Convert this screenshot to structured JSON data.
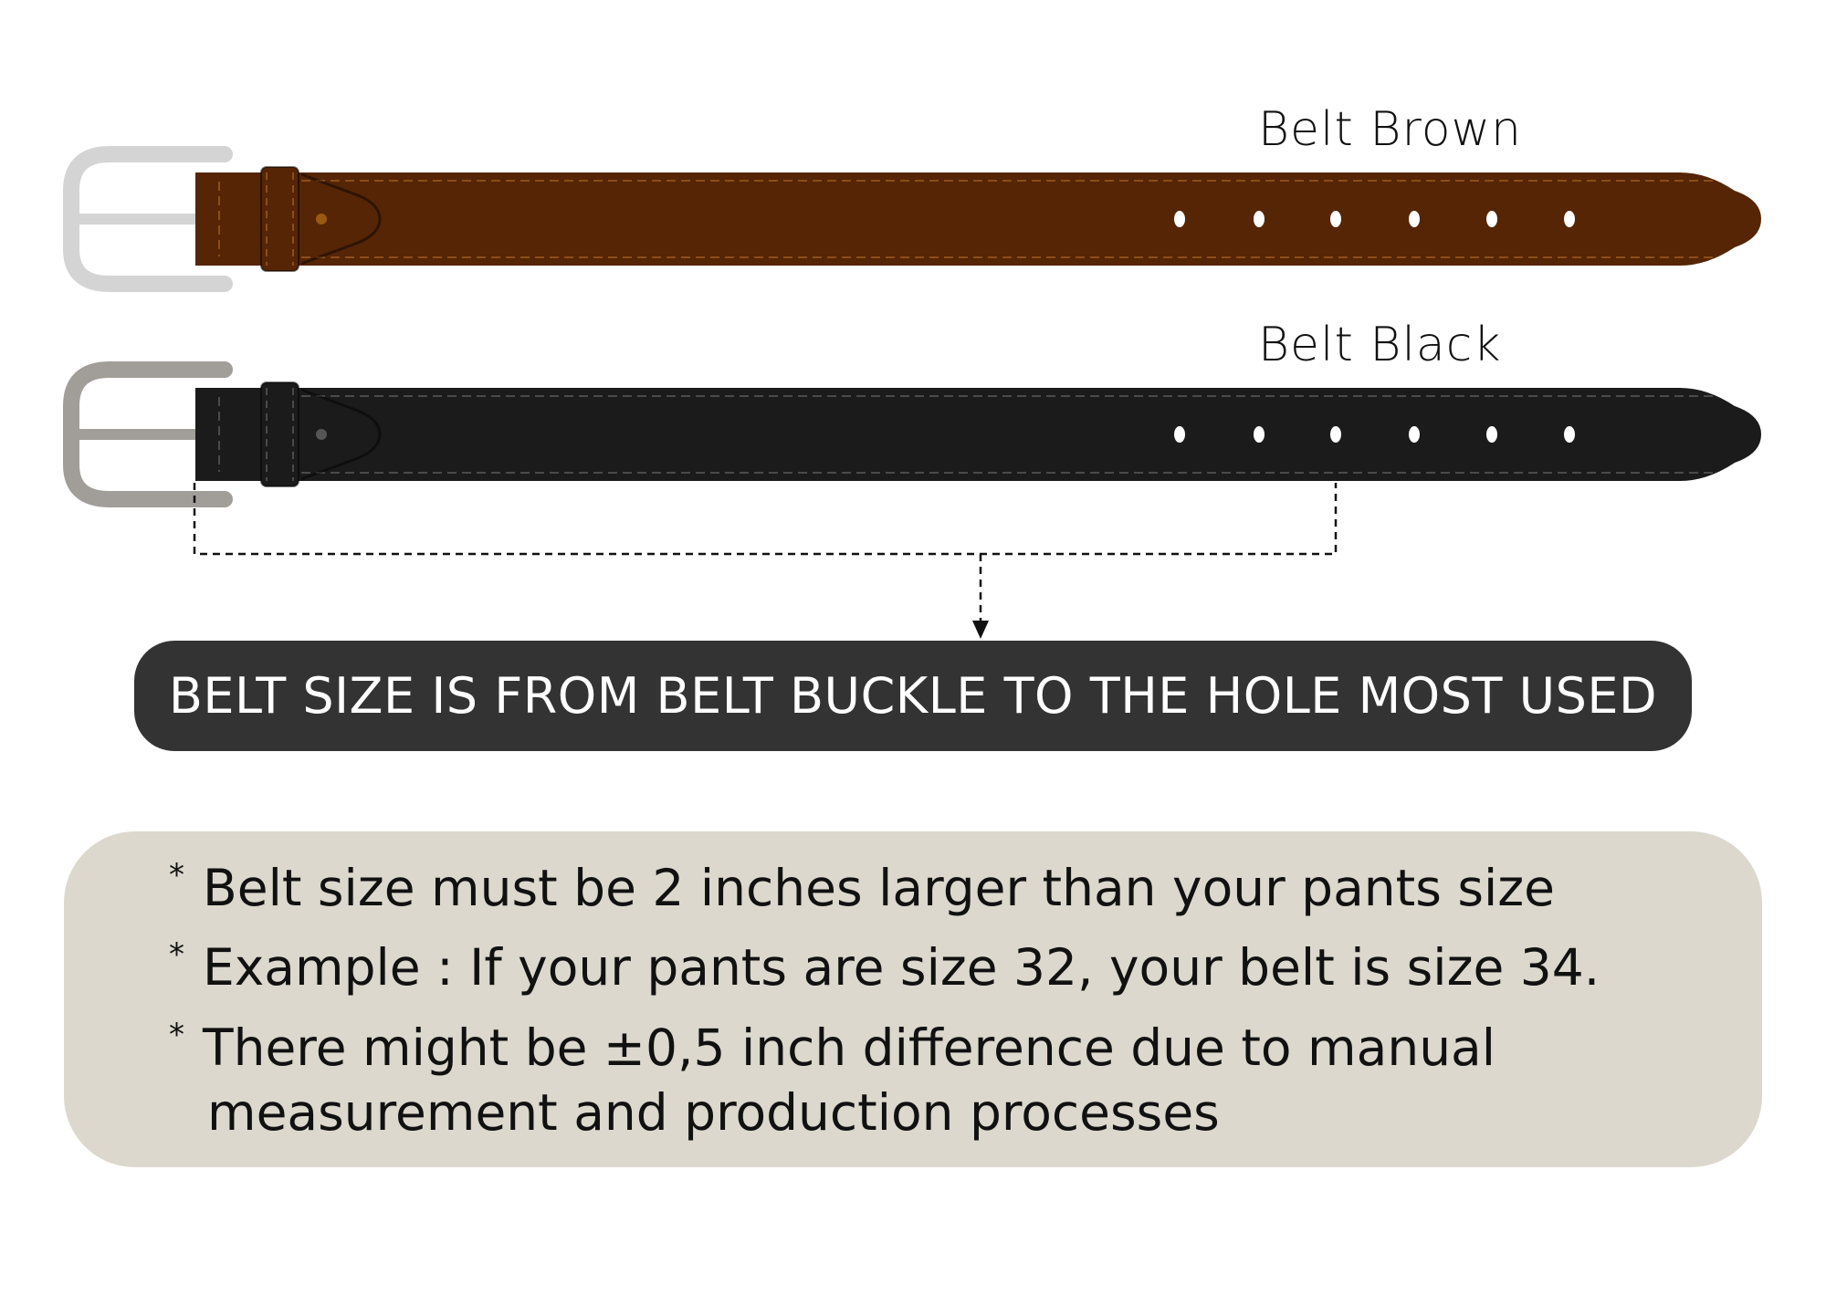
{
  "belts": [
    {
      "label": "Belt Brown",
      "color": "#552505",
      "stitch": "#8a4e1a",
      "buckle": "#d4d4d4",
      "hole_count": 6
    },
    {
      "label": "Belt Black",
      "color": "#1b1b1b",
      "stitch": "#4a4a4a",
      "buckle": "#a19d98",
      "hole_count": 6
    }
  ],
  "size_banner": {
    "text": "BELT SIZE IS FROM BELT BUCKLE TO THE HOLE MOST USED",
    "color": "#333333"
  },
  "notes": {
    "bullet": "*",
    "lines": [
      "Belt size must be 2 inches larger than your pants size",
      "Example : If your pants are size 32, your belt is size 34.",
      "There might be ±0,5 inch difference due to manual",
      "measurement and production processes"
    ],
    "background": "#dcd8cd"
  }
}
